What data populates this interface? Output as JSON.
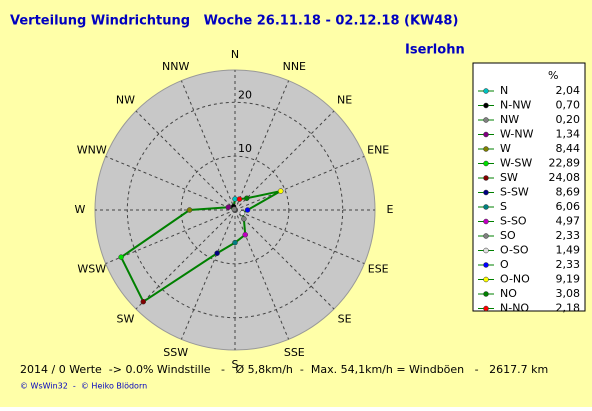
{
  "chart_data": {
    "type": "radar",
    "title": "Verteilung Windrichtung   Woche 26.11.18 - 02.12.18 (KW48)",
    "location": "Iserlohn",
    "axis_labels": [
      "N",
      "NNE",
      "NE",
      "ENE",
      "E",
      "ESE",
      "SE",
      "SSE",
      "S",
      "SSW",
      "SW",
      "WSW",
      "W",
      "WNW",
      "NW",
      "NNW"
    ],
    "legend_header": "%",
    "categories": [
      "N",
      "N-NW",
      "NW",
      "W-NW",
      "W",
      "W-SW",
      "SW",
      "S-SW",
      "S",
      "S-SO",
      "SO",
      "O-SO",
      "O",
      "O-NO",
      "NO",
      "N-NO"
    ],
    "values": [
      2.04,
      0.7,
      0.2,
      1.34,
      8.44,
      22.89,
      24.08,
      8.69,
      6.06,
      4.97,
      2.33,
      1.49,
      2.33,
      9.19,
      3.08,
      2.18
    ],
    "value_labels": [
      "2,04",
      "0,70",
      "0,20",
      "1,34",
      "8,44",
      "22,89",
      "24,08",
      "8,69",
      "6,06",
      "4,97",
      "2,33",
      "1,49",
      "2,33",
      "9,19",
      "3,08",
      "2,18"
    ],
    "colors": [
      "#00c0c0",
      "#000000",
      "#808080",
      "#800080",
      "#808000",
      "#00e000",
      "#800000",
      "#000080",
      "#008080",
      "#c000c0",
      "#808080",
      "#e0e0e0",
      "#0000ff",
      "#ffff00",
      "#008000",
      "#ff0000"
    ],
    "line_color": "#008000",
    "rlim": [
      0,
      26
    ],
    "rticks": [
      10,
      20
    ],
    "footer": "2014 / 0 Werte  -> 0.0% Windstille   -   Ø 5,8km/h  -  Max. 54,1km/h = Windböen   -   2617.7 km",
    "credits": "© WsWin32  -  © Heiko Blödorn"
  }
}
